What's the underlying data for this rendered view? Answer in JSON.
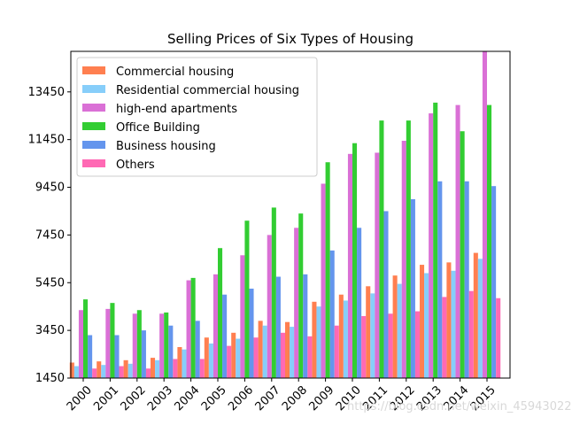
{
  "chart_data": {
    "type": "bar",
    "title": "Selling Prices of Six Types of Housing",
    "xlabel": "",
    "ylabel": "",
    "categories": [
      "2000",
      "2001",
      "2002",
      "2003",
      "2004",
      "2005",
      "2006",
      "2007",
      "2008",
      "2009",
      "2010",
      "2011",
      "2012",
      "2013",
      "2014",
      "2015"
    ],
    "yticks": [
      1450,
      3450,
      5450,
      7450,
      9450,
      11450,
      13450
    ],
    "ytick_labels": [
      "1450",
      "3450",
      "5450",
      "7450",
      "9450",
      "11450",
      "13450"
    ],
    "ylim": [
      1450,
      15150
    ],
    "legend_position": "upper-left",
    "grid": false,
    "series": [
      {
        "name": "Commercial housing",
        "color": "#ff7f50",
        "values": [
          2100,
          2150,
          2200,
          2300,
          2750,
          3150,
          3350,
          3850,
          3800,
          4650,
          4950,
          5300,
          5750,
          6200,
          6300,
          6700
        ]
      },
      {
        "name": "Residential commercial housing",
        "color": "#87cefa",
        "values": [
          1950,
          2000,
          2050,
          2200,
          2650,
          2900,
          3100,
          3650,
          3600,
          4450,
          4700,
          5000,
          5400,
          5850,
          5950,
          6450
        ]
      },
      {
        "name": "high-end apartments",
        "color": "#da70d6",
        "values": [
          4300,
          4350,
          4150,
          4150,
          5550,
          5800,
          6600,
          7450,
          7750,
          9600,
          10850,
          10900,
          11400,
          12550,
          12900,
          15150
        ]
      },
      {
        "name": "Office Building",
        "color": "#32cd32",
        "values": [
          4750,
          4600,
          4300,
          4200,
          5650,
          6900,
          8050,
          8600,
          8350,
          10500,
          11300,
          12250,
          12250,
          13000,
          11800,
          12900
        ]
      },
      {
        "name": "Business housing",
        "color": "#6495ed",
        "values": [
          3250,
          3250,
          3450,
          3650,
          3850,
          4950,
          5200,
          5700,
          5800,
          6800,
          7750,
          8450,
          8950,
          9700,
          9700,
          9500
        ]
      },
      {
        "name": "Others",
        "color": "#ff69b4",
        "values": [
          1850,
          1950,
          1850,
          2250,
          2250,
          2800,
          3150,
          3350,
          3200,
          3650,
          4050,
          4150,
          4250,
          4850,
          5100,
          4800
        ]
      }
    ]
  },
  "watermark": "https://blog.csdn.net/weixin_45943022"
}
